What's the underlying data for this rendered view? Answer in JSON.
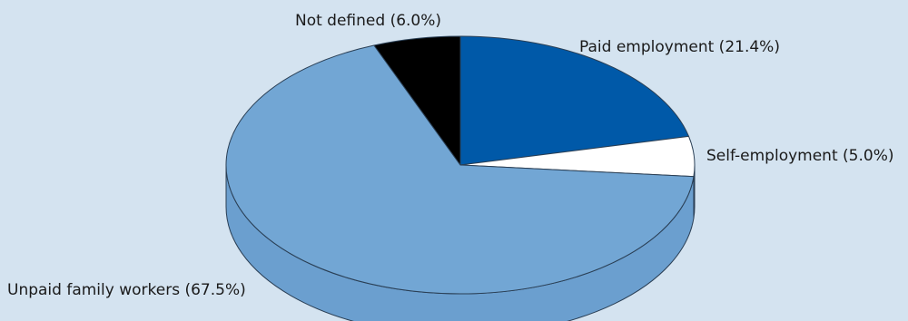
{
  "chart_data": {
    "type": "pie",
    "style": "3d",
    "title": "",
    "categories": [
      "Paid employment",
      "Self-employment",
      "Unpaid family workers",
      "Not defined"
    ],
    "values": [
      21.4,
      5.0,
      67.5,
      6.0
    ],
    "labels": [
      "Paid employment (21.4%)",
      "Self-employment (5.0%)",
      "Unpaid family workers (67.5%)",
      "Not defined (6.0%)"
    ],
    "colors": [
      "#0059a8",
      "#ffffff",
      "#72a6d4",
      "#000000"
    ],
    "side_colors": [
      "#0059a8",
      "#ffffff",
      "#6b9fcf",
      "#000000"
    ],
    "start_angle_deg": 0,
    "direction": "clockwise",
    "background": "#d4e3f0",
    "legend": "none"
  }
}
